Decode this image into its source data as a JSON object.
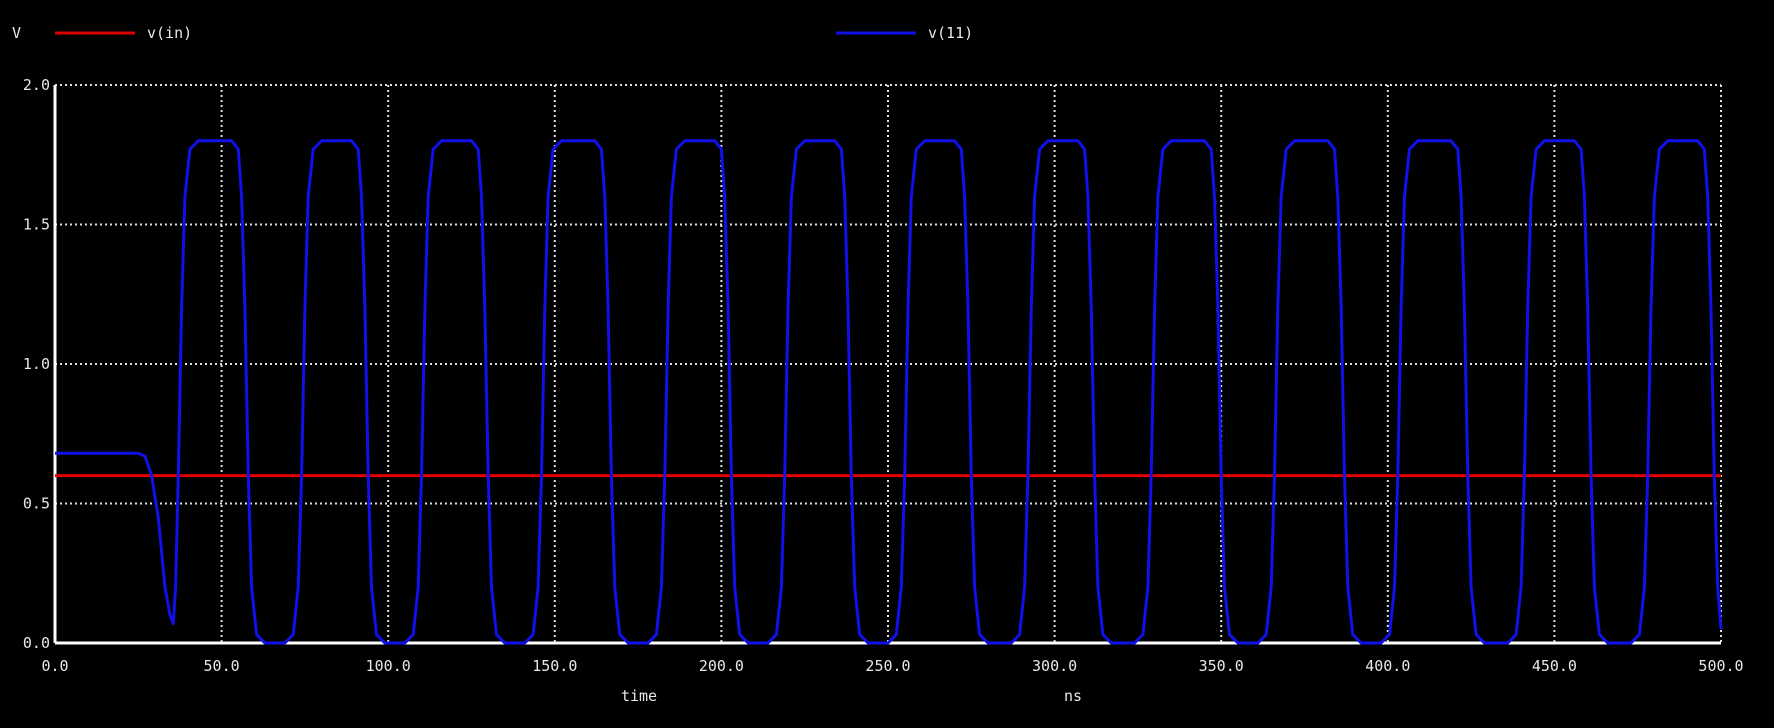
{
  "chart_data": {
    "type": "line",
    "ylabel": "V",
    "xlabel": "time",
    "xunit": "ns",
    "xlim": [
      0,
      500
    ],
    "ylim": [
      0,
      2.0
    ],
    "xticks": [
      0,
      50,
      100,
      150,
      200,
      250,
      300,
      350,
      400,
      450,
      500
    ],
    "xtick_labels": [
      "0.0",
      "50.0",
      "100.0",
      "150.0",
      "200.0",
      "250.0",
      "300.0",
      "350.0",
      "400.0",
      "450.0",
      "500.0"
    ],
    "yticks": [
      0,
      0.5,
      1.0,
      1.5,
      2.0
    ],
    "ytick_labels": [
      "0.0",
      "0.5",
      "1.0",
      "1.5",
      "2.0"
    ],
    "grid": true,
    "legend_position": "top",
    "series": [
      {
        "name": "v(in)",
        "color": "#e00000",
        "points": [
          [
            0,
            0.6
          ],
          [
            500,
            0.6
          ]
        ]
      },
      {
        "name": "v(11)",
        "color": "#1010e8",
        "points": [
          [
            0,
            0.68
          ],
          [
            25,
            0.68
          ],
          [
            27,
            0.67
          ],
          [
            29,
            0.6
          ],
          [
            31,
            0.45
          ],
          [
            33,
            0.2
          ],
          [
            34.5,
            0.1
          ],
          [
            35.5,
            0.07
          ],
          [
            36.2,
            0.2
          ],
          [
            37,
            0.6
          ],
          [
            38,
            1.2
          ],
          [
            39,
            1.6
          ],
          [
            40.5,
            1.77
          ],
          [
            43,
            1.8
          ],
          [
            53,
            1.8
          ],
          [
            55,
            1.77
          ],
          [
            56,
            1.6
          ],
          [
            57,
            1.2
          ],
          [
            58,
            0.6
          ],
          [
            59,
            0.2
          ],
          [
            60.5,
            0.03
          ],
          [
            63,
            0
          ],
          [
            69,
            0
          ],
          [
            71.5,
            0.03
          ],
          [
            73,
            0.2
          ],
          [
            74,
            0.6
          ],
          [
            75,
            1.2
          ],
          [
            76,
            1.6
          ],
          [
            77.5,
            1.77
          ],
          [
            80,
            1.8
          ],
          [
            89,
            1.8
          ],
          [
            91,
            1.77
          ],
          [
            92,
            1.6
          ],
          [
            93,
            1.2
          ],
          [
            94,
            0.6
          ],
          [
            95,
            0.2
          ],
          [
            96.5,
            0.03
          ],
          [
            99,
            0
          ],
          [
            105,
            0
          ],
          [
            107.5,
            0.03
          ],
          [
            109,
            0.2
          ],
          [
            110,
            0.6
          ],
          [
            111,
            1.2
          ],
          [
            112,
            1.6
          ],
          [
            113.5,
            1.77
          ],
          [
            116,
            1.8
          ],
          [
            125,
            1.8
          ],
          [
            127,
            1.77
          ],
          [
            128,
            1.6
          ],
          [
            129,
            1.2
          ],
          [
            130,
            0.6
          ],
          [
            131,
            0.2
          ],
          [
            132.5,
            0.03
          ],
          [
            135,
            0
          ],
          [
            141,
            0
          ],
          [
            143.5,
            0.03
          ],
          [
            145,
            0.2
          ],
          [
            146,
            0.6
          ],
          [
            147,
            1.2
          ],
          [
            148,
            1.6
          ],
          [
            149.5,
            1.77
          ],
          [
            152,
            1.8
          ],
          [
            162,
            1.8
          ],
          [
            164,
            1.77
          ],
          [
            165,
            1.6
          ],
          [
            166,
            1.2
          ],
          [
            167,
            0.6
          ],
          [
            168,
            0.2
          ],
          [
            169.5,
            0.03
          ],
          [
            172,
            0
          ],
          [
            178,
            0
          ],
          [
            180.5,
            0.03
          ],
          [
            182,
            0.2
          ],
          [
            183,
            0.6
          ],
          [
            184,
            1.2
          ],
          [
            185,
            1.6
          ],
          [
            186.5,
            1.77
          ],
          [
            189,
            1.8
          ],
          [
            198,
            1.8
          ],
          [
            200,
            1.77
          ],
          [
            201,
            1.6
          ],
          [
            202,
            1.2
          ],
          [
            203,
            0.6
          ],
          [
            204,
            0.2
          ],
          [
            205.5,
            0.03
          ],
          [
            208,
            0
          ],
          [
            214,
            0
          ],
          [
            216.5,
            0.03
          ],
          [
            218,
            0.2
          ],
          [
            219,
            0.6
          ],
          [
            220,
            1.2
          ],
          [
            221,
            1.6
          ],
          [
            222.5,
            1.77
          ],
          [
            225,
            1.8
          ],
          [
            234,
            1.8
          ],
          [
            236,
            1.77
          ],
          [
            237,
            1.6
          ],
          [
            238,
            1.2
          ],
          [
            239,
            0.6
          ],
          [
            240,
            0.2
          ],
          [
            241.5,
            0.03
          ],
          [
            244,
            0
          ],
          [
            250,
            0
          ],
          [
            252.5,
            0.03
          ],
          [
            254,
            0.2
          ],
          [
            255,
            0.6
          ],
          [
            256,
            1.2
          ],
          [
            257,
            1.6
          ],
          [
            258.5,
            1.77
          ],
          [
            261,
            1.8
          ],
          [
            270,
            1.8
          ],
          [
            272,
            1.77
          ],
          [
            273,
            1.6
          ],
          [
            274,
            1.2
          ],
          [
            275,
            0.6
          ],
          [
            276,
            0.2
          ],
          [
            277.5,
            0.03
          ],
          [
            280,
            0
          ],
          [
            287,
            0
          ],
          [
            289.5,
            0.03
          ],
          [
            291,
            0.2
          ],
          [
            292,
            0.6
          ],
          [
            293,
            1.2
          ],
          [
            294,
            1.6
          ],
          [
            295.5,
            1.77
          ],
          [
            298,
            1.8
          ],
          [
            307,
            1.8
          ],
          [
            309,
            1.77
          ],
          [
            310,
            1.6
          ],
          [
            311,
            1.2
          ],
          [
            312,
            0.6
          ],
          [
            313,
            0.2
          ],
          [
            314.5,
            0.03
          ],
          [
            317,
            0
          ],
          [
            324,
            0
          ],
          [
            326.5,
            0.03
          ],
          [
            328,
            0.2
          ],
          [
            329,
            0.6
          ],
          [
            330,
            1.2
          ],
          [
            331,
            1.6
          ],
          [
            332.5,
            1.77
          ],
          [
            335,
            1.8
          ],
          [
            345,
            1.8
          ],
          [
            347,
            1.77
          ],
          [
            348,
            1.6
          ],
          [
            349,
            1.2
          ],
          [
            350,
            0.6
          ],
          [
            351,
            0.2
          ],
          [
            352.5,
            0.03
          ],
          [
            355,
            0
          ],
          [
            361,
            0
          ],
          [
            363.5,
            0.03
          ],
          [
            365,
            0.2
          ],
          [
            366,
            0.6
          ],
          [
            367,
            1.2
          ],
          [
            368,
            1.6
          ],
          [
            369.5,
            1.77
          ],
          [
            372,
            1.8
          ],
          [
            382,
            1.8
          ],
          [
            384,
            1.77
          ],
          [
            385,
            1.6
          ],
          [
            386,
            1.2
          ],
          [
            387,
            0.6
          ],
          [
            388,
            0.2
          ],
          [
            389.5,
            0.03
          ],
          [
            392,
            0
          ],
          [
            398,
            0
          ],
          [
            400.5,
            0.03
          ],
          [
            402,
            0.2
          ],
          [
            403,
            0.6
          ],
          [
            404,
            1.2
          ],
          [
            405,
            1.6
          ],
          [
            406.5,
            1.77
          ],
          [
            409,
            1.8
          ],
          [
            419,
            1.8
          ],
          [
            421,
            1.77
          ],
          [
            422,
            1.6
          ],
          [
            423,
            1.2
          ],
          [
            424,
            0.6
          ],
          [
            425,
            0.2
          ],
          [
            426.5,
            0.03
          ],
          [
            429,
            0
          ],
          [
            436,
            0
          ],
          [
            438.5,
            0.03
          ],
          [
            440,
            0.2
          ],
          [
            441,
            0.6
          ],
          [
            442,
            1.2
          ],
          [
            443,
            1.6
          ],
          [
            444.5,
            1.77
          ],
          [
            447,
            1.8
          ],
          [
            456,
            1.8
          ],
          [
            458,
            1.77
          ],
          [
            459,
            1.6
          ],
          [
            460,
            1.2
          ],
          [
            461,
            0.6
          ],
          [
            462,
            0.2
          ],
          [
            463.5,
            0.03
          ],
          [
            466,
            0
          ],
          [
            473,
            0
          ],
          [
            475.5,
            0.03
          ],
          [
            477,
            0.2
          ],
          [
            478,
            0.6
          ],
          [
            479,
            1.2
          ],
          [
            480,
            1.6
          ],
          [
            481.5,
            1.77
          ],
          [
            484,
            1.8
          ],
          [
            493,
            1.8
          ],
          [
            495,
            1.77
          ],
          [
            496,
            1.6
          ],
          [
            497,
            1.2
          ],
          [
            498,
            0.6
          ],
          [
            499,
            0.2
          ],
          [
            500,
            0.05
          ]
        ]
      }
    ]
  }
}
